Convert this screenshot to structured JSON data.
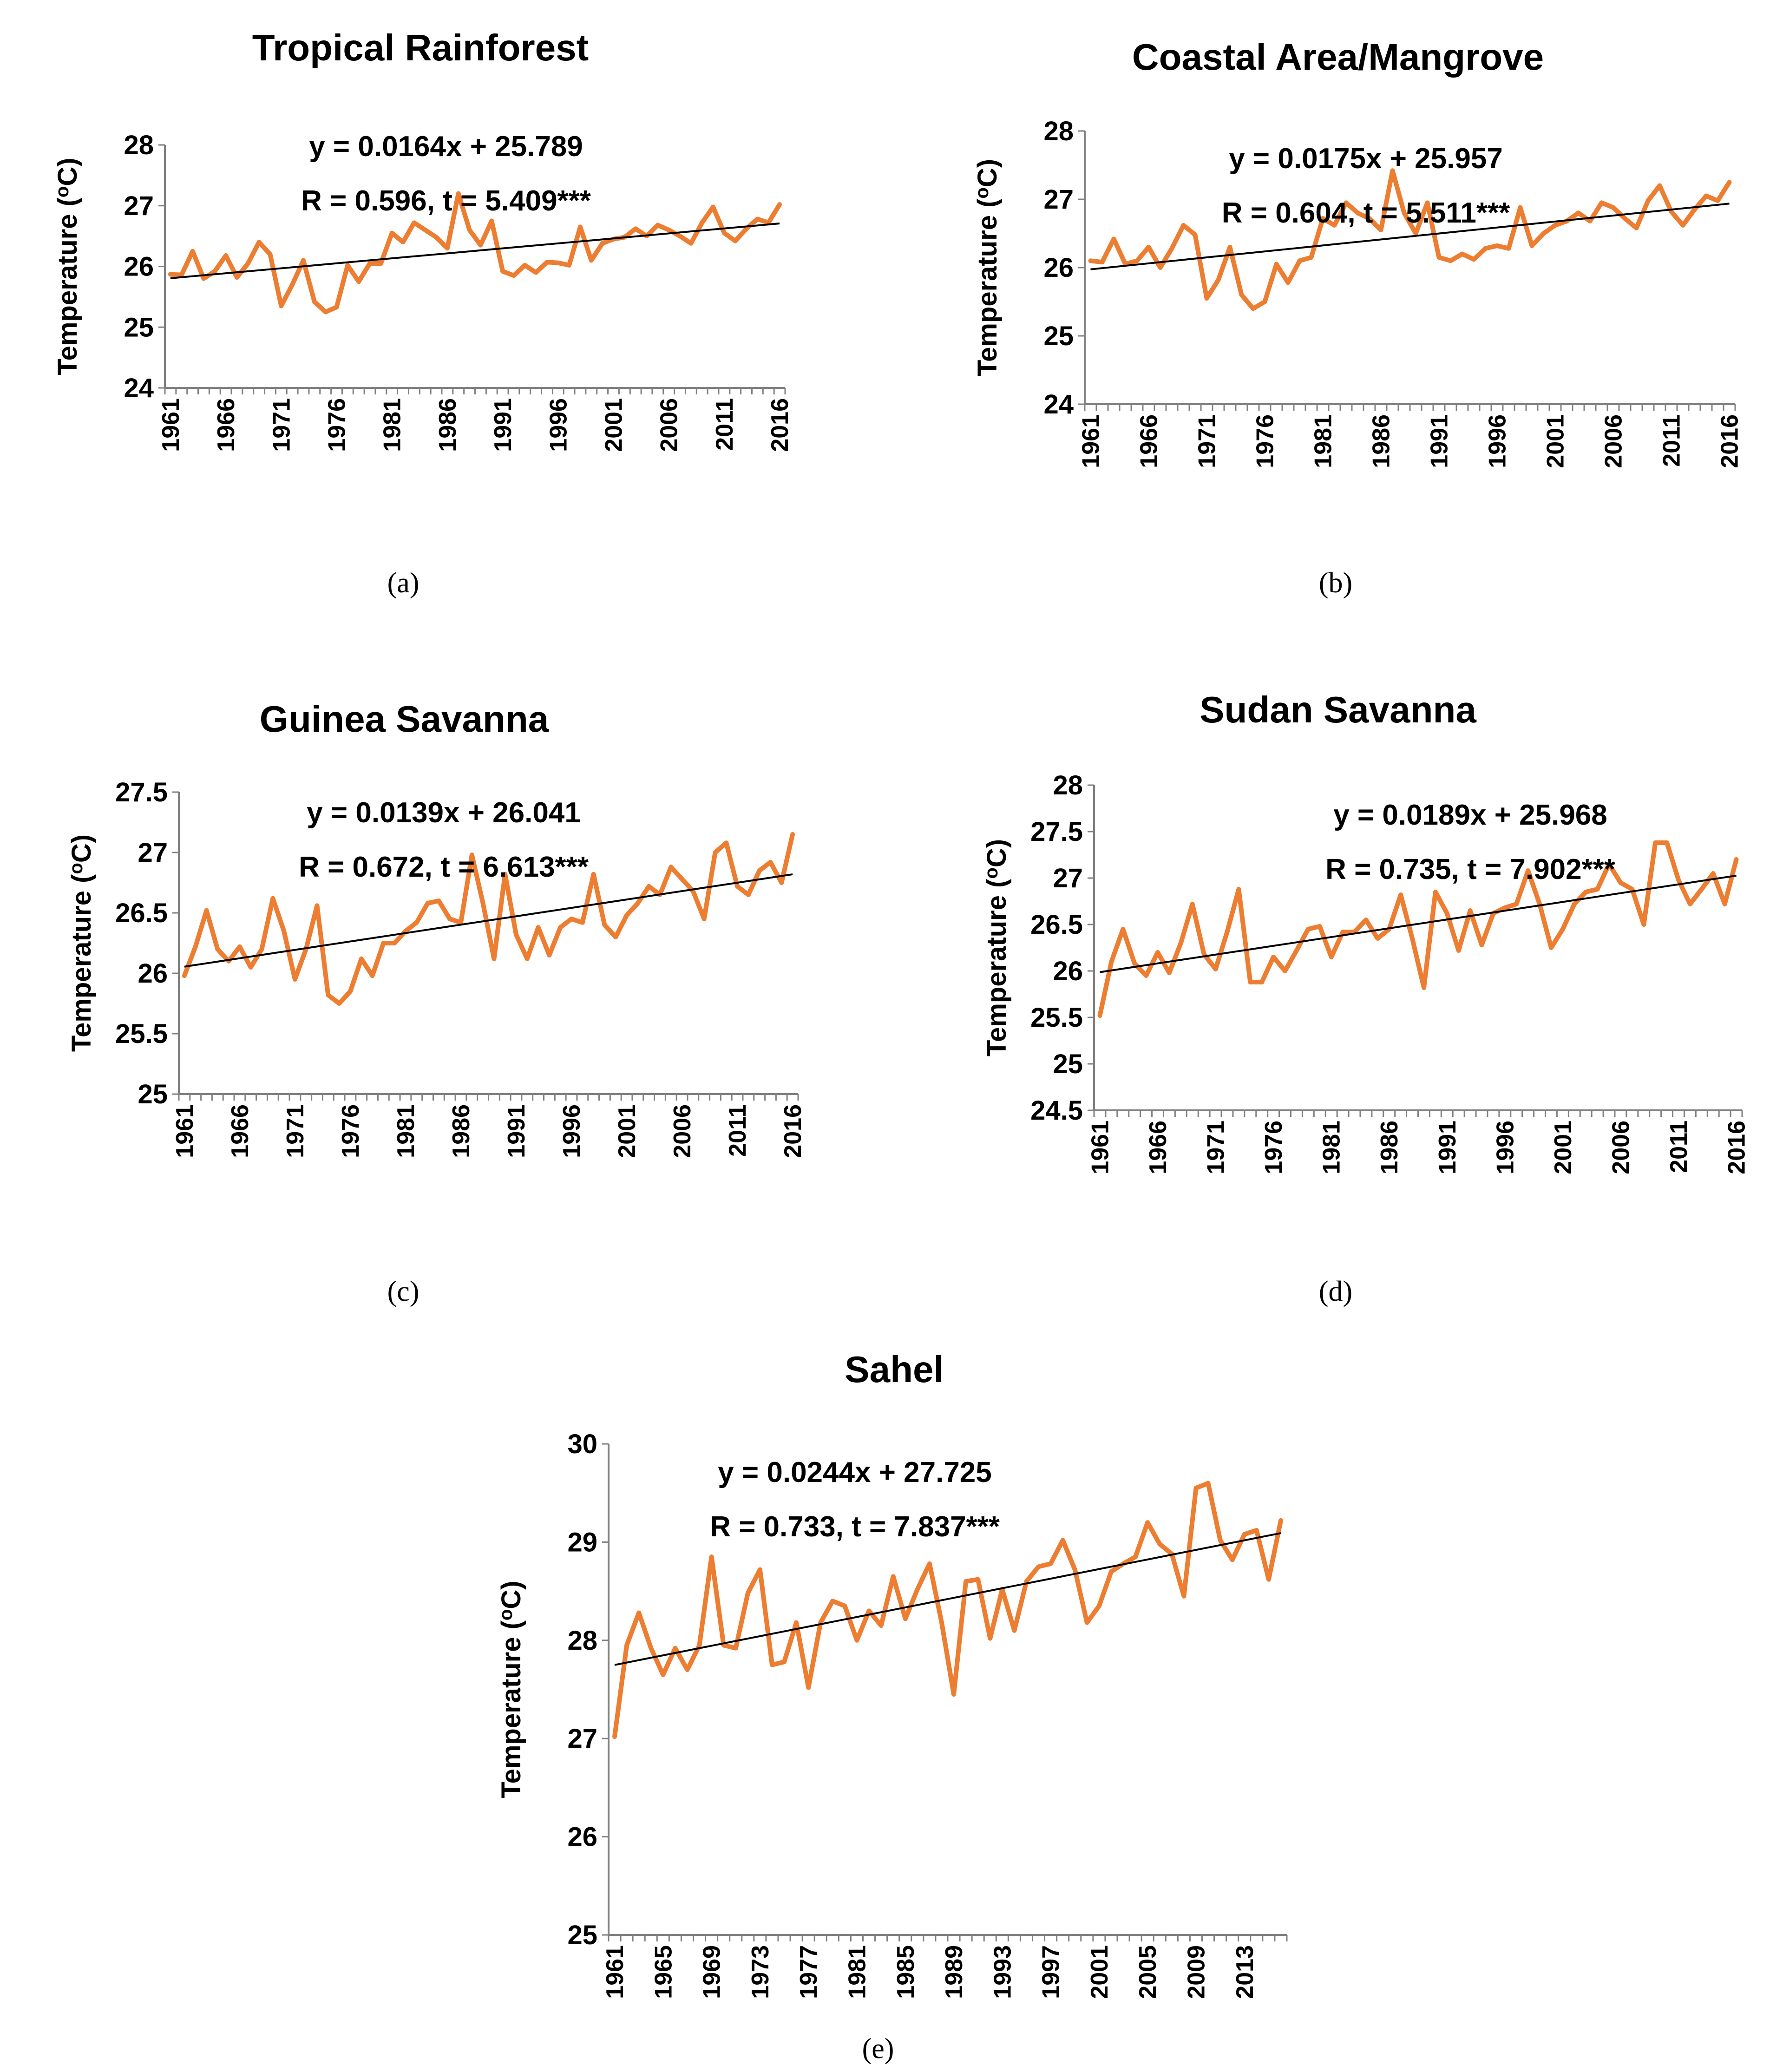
{
  "chart_data": [
    {
      "id": "a",
      "type": "line",
      "title": "Tropical Rainforest",
      "caption": "(a)",
      "ylabel": "Temperature (oC)",
      "equation": "y = 0.0164x + 25.789",
      "stats": "R = 0.596, t = 5.409***",
      "ylim": [
        24,
        28
      ],
      "yticks": [
        24,
        25,
        26,
        27,
        28
      ],
      "xticks": [
        "1961",
        "1966",
        "1971",
        "1976",
        "1981",
        "1986",
        "1991",
        "1996",
        "2001",
        "2006",
        "2011",
        "2016"
      ],
      "x_start": 1961,
      "trend": {
        "slope": 0.0164,
        "intercept": 25.789
      },
      "series": [
        {
          "name": "Temperature",
          "values": [
            25.87,
            25.86,
            26.25,
            25.8,
            25.92,
            26.18,
            25.82,
            26.05,
            26.4,
            26.2,
            25.35,
            25.7,
            26.1,
            25.42,
            25.25,
            25.33,
            26.02,
            25.75,
            26.05,
            26.05,
            26.55,
            26.4,
            26.72,
            26.6,
            26.48,
            26.3,
            27.2,
            26.6,
            26.35,
            26.75,
            25.92,
            25.85,
            26.02,
            25.9,
            26.07,
            26.06,
            26.02,
            26.65,
            26.1,
            26.38,
            26.45,
            26.48,
            26.62,
            26.5,
            26.68,
            26.6,
            26.5,
            26.38,
            26.72,
            26.98,
            26.55,
            26.42,
            26.62,
            26.78,
            26.72,
            27.02
          ]
        }
      ]
    },
    {
      "id": "b",
      "type": "line",
      "title": "Coastal Area/Mangrove",
      "caption": "(b)",
      "ylabel": "Temperature (oC)",
      "equation": "y = 0.0175x + 25.957",
      "stats": "R = 0.604, t = 5.511***",
      "ylim": [
        24,
        28
      ],
      "yticks": [
        24,
        25,
        26,
        27,
        28
      ],
      "xticks": [
        "1961",
        "1966",
        "1971",
        "1976",
        "1981",
        "1986",
        "1991",
        "1996",
        "2001",
        "2006",
        "2011",
        "2016"
      ],
      "x_start": 1961,
      "trend": {
        "slope": 0.0175,
        "intercept": 25.957
      },
      "series": [
        {
          "name": "Temperature",
          "values": [
            26.1,
            26.08,
            26.42,
            26.05,
            26.1,
            26.3,
            26.0,
            26.28,
            26.62,
            26.48,
            25.55,
            25.82,
            26.3,
            25.6,
            25.4,
            25.5,
            26.05,
            25.78,
            26.1,
            26.15,
            26.72,
            26.62,
            26.95,
            26.8,
            26.72,
            26.55,
            27.42,
            26.8,
            26.5,
            26.95,
            26.15,
            26.1,
            26.2,
            26.12,
            26.28,
            26.32,
            26.28,
            26.88,
            26.32,
            26.5,
            26.62,
            26.68,
            26.8,
            26.68,
            26.95,
            26.88,
            26.72,
            26.58,
            26.98,
            27.2,
            26.82,
            26.62,
            26.85,
            27.05,
            26.98,
            27.25
          ]
        }
      ]
    },
    {
      "id": "c",
      "type": "line",
      "title": "Guinea Savanna",
      "caption": "(c)",
      "ylabel": "Temperature (oC)",
      "equation": "y = 0.0139x + 26.041",
      "stats": "R = 0.672, t = 6.613***",
      "ylim": [
        25,
        27.5
      ],
      "yticks": [
        25,
        25.5,
        26,
        26.5,
        27,
        27.5
      ],
      "xticks": [
        "1961",
        "1966",
        "1971",
        "1976",
        "1981",
        "1986",
        "1991",
        "1996",
        "2001",
        "2006",
        "2011",
        "2016"
      ],
      "x_start": 1961,
      "trend": {
        "slope": 0.0139,
        "intercept": 26.041
      },
      "series": [
        {
          "name": "Temperature",
          "values": [
            25.98,
            26.22,
            26.52,
            26.2,
            26.1,
            26.22,
            26.05,
            26.2,
            26.62,
            26.35,
            25.95,
            26.2,
            26.56,
            25.82,
            25.75,
            25.85,
            26.12,
            25.98,
            26.25,
            26.25,
            26.35,
            26.42,
            26.58,
            26.6,
            26.45,
            26.42,
            26.98,
            26.58,
            26.12,
            26.82,
            26.32,
            26.12,
            26.38,
            26.15,
            26.38,
            26.45,
            26.42,
            26.82,
            26.4,
            26.3,
            26.48,
            26.58,
            26.72,
            26.65,
            26.88,
            26.78,
            26.68,
            26.45,
            27.0,
            27.08,
            26.72,
            26.65,
            26.85,
            26.92,
            26.75,
            27.15
          ]
        }
      ]
    },
    {
      "id": "d",
      "type": "line",
      "title": "Sudan Savanna",
      "caption": "(d)",
      "ylabel": "Temperature (oC)",
      "equation": "y = 0.0189x + 25.968",
      "stats": "R = 0.735, t = 7.902***",
      "ylim": [
        24.5,
        28
      ],
      "yticks": [
        24.5,
        25,
        25.5,
        26,
        26.5,
        27,
        27.5,
        28
      ],
      "xticks": [
        "1961",
        "1966",
        "1971",
        "1976",
        "1981",
        "1986",
        "1991",
        "1996",
        "2001",
        "2006",
        "2011",
        "2016"
      ],
      "x_start": 1961,
      "trend": {
        "slope": 0.0189,
        "intercept": 25.968
      },
      "series": [
        {
          "name": "Temperature",
          "values": [
            25.52,
            26.1,
            26.45,
            26.08,
            25.95,
            26.2,
            25.98,
            26.3,
            26.72,
            26.18,
            26.02,
            26.42,
            26.88,
            25.88,
            25.88,
            26.15,
            26.0,
            26.22,
            26.45,
            26.48,
            26.15,
            26.42,
            26.42,
            26.55,
            26.35,
            26.45,
            26.82,
            26.35,
            25.82,
            26.85,
            26.62,
            26.22,
            26.65,
            26.28,
            26.62,
            26.68,
            26.72,
            27.08,
            26.72,
            26.25,
            26.45,
            26.72,
            26.85,
            26.88,
            27.15,
            26.95,
            26.88,
            26.5,
            27.38,
            27.38,
            26.98,
            26.72,
            26.88,
            27.05,
            26.72,
            27.2
          ]
        }
      ]
    },
    {
      "id": "e",
      "type": "line",
      "title": "Sahel",
      "caption": "(e)",
      "ylabel": "Temperature (oC)",
      "equation": "y = 0.0244x + 27.725",
      "stats": "R = 0.733, t = 7.837***",
      "ylim": [
        25,
        30
      ],
      "yticks": [
        25,
        26,
        27,
        28,
        29,
        30
      ],
      "xticks": [
        "1961",
        "1965",
        "1969",
        "1973",
        "1977",
        "1981",
        "1985",
        "1989",
        "1993",
        "1997",
        "2001",
        "2005",
        "2009",
        "2013"
      ],
      "x_start": 1961,
      "trend": {
        "slope": 0.0244,
        "intercept": 27.725
      },
      "series": [
        {
          "name": "Temperature",
          "values": [
            27.02,
            27.95,
            28.28,
            27.92,
            27.65,
            27.92,
            27.7,
            27.95,
            28.85,
            27.95,
            27.92,
            28.48,
            28.72,
            27.75,
            27.78,
            28.18,
            27.52,
            28.18,
            28.4,
            28.35,
            28.0,
            28.3,
            28.15,
            28.65,
            28.22,
            28.52,
            28.78,
            28.18,
            27.45,
            28.6,
            28.62,
            28.02,
            28.52,
            28.1,
            28.6,
            28.75,
            28.78,
            29.02,
            28.72,
            28.18,
            28.35,
            28.7,
            28.78,
            28.85,
            29.2,
            28.98,
            28.88,
            28.45,
            29.55,
            29.6,
            29.02,
            28.82,
            29.08,
            29.12,
            28.62,
            29.22
          ]
        }
      ]
    }
  ]
}
